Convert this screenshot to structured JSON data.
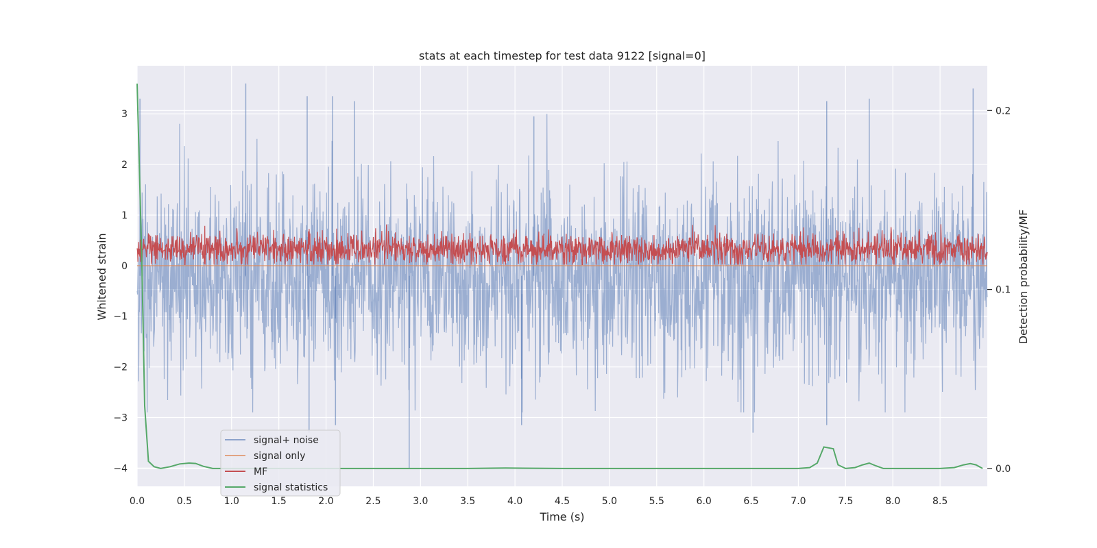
{
  "chart_data": {
    "type": "line",
    "title": "stats at each timestep for test data 9122 [signal=0]",
    "xlabel": "Time (s)",
    "ylabel_left": "Whitened strain",
    "ylabel_right": "Detection probability/MF",
    "xlim": [
      0,
      9.0
    ],
    "ylim_left": [
      -4.36,
      3.95
    ],
    "ylim_right": [
      -0.01,
      0.225
    ],
    "x_ticks": [
      "0.0",
      "0.5",
      "1.0",
      "1.5",
      "2.0",
      "2.5",
      "3.0",
      "3.5",
      "4.0",
      "4.5",
      "5.0",
      "5.5",
      "6.0",
      "6.5",
      "7.0",
      "7.5",
      "8.0",
      "8.5"
    ],
    "y_ticks_left": [
      "3",
      "2",
      "1",
      "0",
      "−1",
      "−2",
      "−3",
      "−4"
    ],
    "y_ticks_right": [
      "0.2",
      "0.1",
      "0.0"
    ],
    "grid": true,
    "legend_position": "lower-left",
    "series": [
      {
        "name": "signal+ noise",
        "axis": "left",
        "color": "#4c72b0",
        "description": "whitened noise, roughly between -2.5 and 3.4",
        "envelope": {
          "center": -0.2,
          "typical_low": -2.0,
          "typical_high": 2.0
        },
        "peaks": [
          [
            0.03,
            3.3
          ],
          [
            1.15,
            3.6
          ],
          [
            1.8,
            3.35
          ],
          [
            2.07,
            3.35
          ],
          [
            2.3,
            3.25
          ],
          [
            4.2,
            2.95
          ],
          [
            7.3,
            3.25
          ],
          [
            7.75,
            3.3
          ],
          [
            8.85,
            3.5
          ],
          [
            1.82,
            -3.3
          ],
          [
            2.1,
            -3.15
          ],
          [
            2.88,
            -4.0
          ],
          [
            4.07,
            -3.15
          ],
          [
            6.52,
            -3.3
          ],
          [
            7.3,
            -3.15
          ]
        ]
      },
      {
        "name": "signal only",
        "axis": "left",
        "color": "#dd8452",
        "values_constant": 0.0
      },
      {
        "name": "MF",
        "axis": "left",
        "color": "#c44e52",
        "description": "matched filter output, roughly between 0 and 0.9",
        "envelope": {
          "low": 0.0,
          "high": 0.95
        }
      },
      {
        "name": "signal statistics",
        "axis": "right",
        "color": "#55a868",
        "x": [
          0.0,
          0.02,
          0.05,
          0.08,
          0.12,
          0.18,
          0.25,
          0.35,
          0.45,
          0.55,
          0.62,
          0.7,
          0.8,
          1.0,
          2.0,
          3.0,
          3.5,
          3.9,
          4.5,
          5.5,
          6.5,
          7.0,
          7.12,
          7.2,
          7.27,
          7.32,
          7.37,
          7.42,
          7.5,
          7.6,
          7.68,
          7.75,
          7.82,
          7.9,
          8.0,
          8.3,
          8.5,
          8.65,
          8.75,
          8.82,
          8.88,
          8.95
        ],
        "values": [
          0.215,
          0.175,
          0.115,
          0.035,
          0.004,
          0.001,
          0.0,
          0.001,
          0.0025,
          0.003,
          0.0028,
          0.0012,
          0.0,
          0.0,
          0.0,
          0.0,
          0.0,
          0.0002,
          0.0,
          0.0,
          0.0,
          0.0,
          0.0005,
          0.003,
          0.012,
          0.0115,
          0.011,
          0.002,
          0.0,
          0.0005,
          0.002,
          0.003,
          0.0015,
          0.0,
          0.0,
          0.0,
          0.0,
          0.0005,
          0.002,
          0.0027,
          0.002,
          0.0
        ]
      }
    ]
  }
}
